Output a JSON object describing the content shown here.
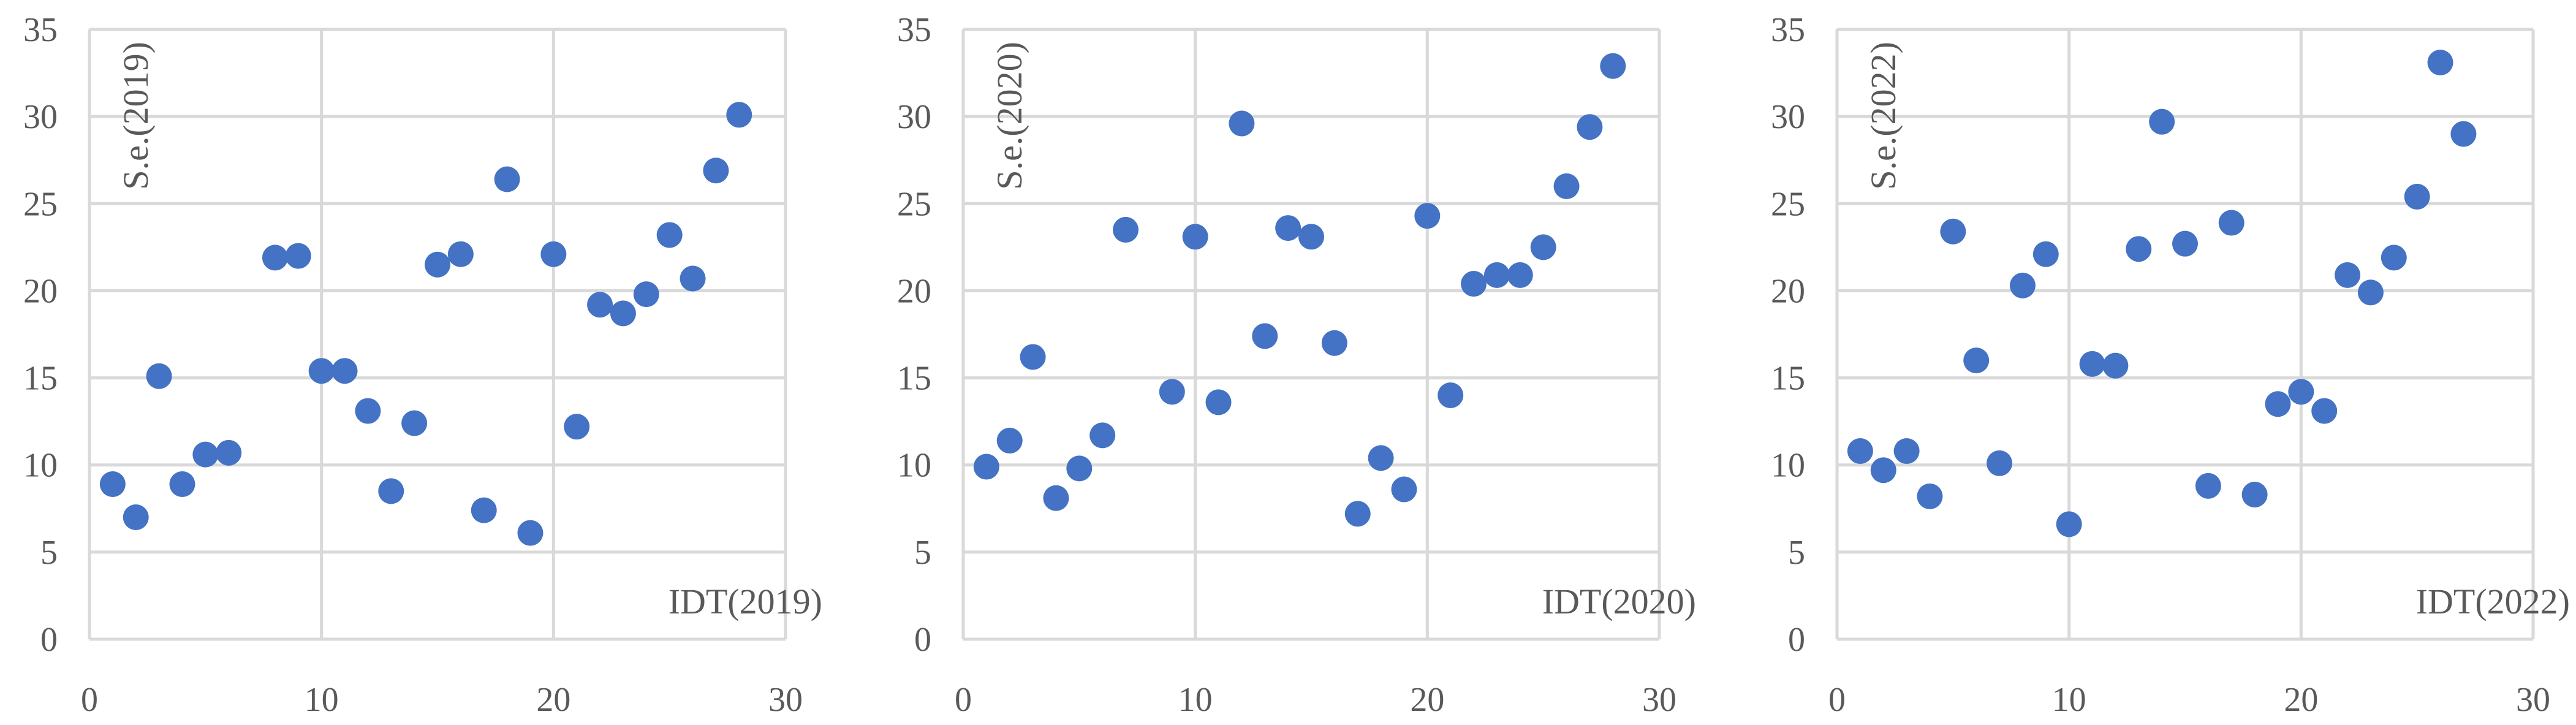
{
  "chart_data": [
    {
      "type": "scatter",
      "xlabel": "IDT(2019)",
      "ylabel": "S.e.(2019)",
      "xlim": [
        0,
        30
      ],
      "ylim": [
        0,
        35
      ],
      "x_ticks": [
        "0",
        "10",
        "20",
        "30"
      ],
      "y_ticks": [
        "0",
        "5",
        "10",
        "15",
        "20",
        "25",
        "30",
        "35"
      ],
      "grid": true,
      "marker_color": "#4472C4",
      "points": [
        [
          1,
          8.9
        ],
        [
          2,
          7.0
        ],
        [
          3,
          15.1
        ],
        [
          4,
          8.9
        ],
        [
          5,
          10.6
        ],
        [
          6,
          10.7
        ],
        [
          8,
          21.9
        ],
        [
          9,
          22.0
        ],
        [
          10,
          15.4
        ],
        [
          11,
          15.4
        ],
        [
          12,
          13.1
        ],
        [
          13,
          8.5
        ],
        [
          14,
          12.4
        ],
        [
          15,
          21.5
        ],
        [
          16,
          22.1
        ],
        [
          17,
          7.4
        ],
        [
          18,
          26.4
        ],
        [
          19,
          6.1
        ],
        [
          20,
          22.1
        ],
        [
          21,
          12.2
        ],
        [
          22,
          19.2
        ],
        [
          23,
          18.7
        ],
        [
          24,
          19.8
        ],
        [
          25,
          23.2
        ],
        [
          26,
          20.7
        ],
        [
          27,
          26.9
        ],
        [
          28,
          30.1
        ]
      ]
    },
    {
      "type": "scatter",
      "xlabel": "IDT(2020)",
      "ylabel": "S.e.(2020)",
      "xlim": [
        0,
        30
      ],
      "ylim": [
        0,
        35
      ],
      "x_ticks": [
        "0",
        "10",
        "20",
        "30"
      ],
      "y_ticks": [
        "0",
        "5",
        "10",
        "15",
        "20",
        "25",
        "30",
        "35"
      ],
      "grid": true,
      "marker_color": "#4472C4",
      "points": [
        [
          1,
          9.9
        ],
        [
          2,
          11.4
        ],
        [
          3,
          16.2
        ],
        [
          4,
          8.1
        ],
        [
          5,
          9.8
        ],
        [
          6,
          11.7
        ],
        [
          7,
          23.5
        ],
        [
          9,
          14.2
        ],
        [
          10,
          23.1
        ],
        [
          11,
          13.6
        ],
        [
          12,
          29.6
        ],
        [
          13,
          17.4
        ],
        [
          14,
          23.6
        ],
        [
          15,
          23.1
        ],
        [
          16,
          17.0
        ],
        [
          17,
          7.2
        ],
        [
          18,
          10.4
        ],
        [
          19,
          8.6
        ],
        [
          20,
          24.3
        ],
        [
          21,
          14.0
        ],
        [
          22,
          20.4
        ],
        [
          23,
          20.9
        ],
        [
          24,
          20.9
        ],
        [
          25,
          22.5
        ],
        [
          26,
          26.0
        ],
        [
          27,
          29.4
        ],
        [
          28,
          32.9
        ]
      ]
    },
    {
      "type": "scatter",
      "xlabel": "IDT(2022)",
      "ylabel": "S.e.(2022)",
      "xlim": [
        0,
        30
      ],
      "ylim": [
        0,
        35
      ],
      "x_ticks": [
        "0",
        "10",
        "20",
        "30"
      ],
      "y_ticks": [
        "0",
        "5",
        "10",
        "15",
        "20",
        "25",
        "30",
        "35"
      ],
      "grid": true,
      "marker_color": "#4472C4",
      "points": [
        [
          1,
          10.8
        ],
        [
          2,
          9.7
        ],
        [
          3,
          10.8
        ],
        [
          4,
          8.2
        ],
        [
          5,
          23.4
        ],
        [
          6,
          16.0
        ],
        [
          7,
          10.1
        ],
        [
          8,
          20.3
        ],
        [
          9,
          22.1
        ],
        [
          10,
          6.6
        ],
        [
          11,
          15.8
        ],
        [
          12,
          15.7
        ],
        [
          13,
          22.4
        ],
        [
          14,
          29.7
        ],
        [
          15,
          22.7
        ],
        [
          16,
          8.8
        ],
        [
          17,
          23.9
        ],
        [
          18,
          8.3
        ],
        [
          19,
          13.5
        ],
        [
          20,
          14.2
        ],
        [
          21,
          13.1
        ],
        [
          22,
          20.9
        ],
        [
          23,
          19.9
        ],
        [
          24,
          21.9
        ],
        [
          25,
          25.4
        ],
        [
          26,
          33.1
        ],
        [
          27,
          29.0
        ]
      ]
    }
  ]
}
